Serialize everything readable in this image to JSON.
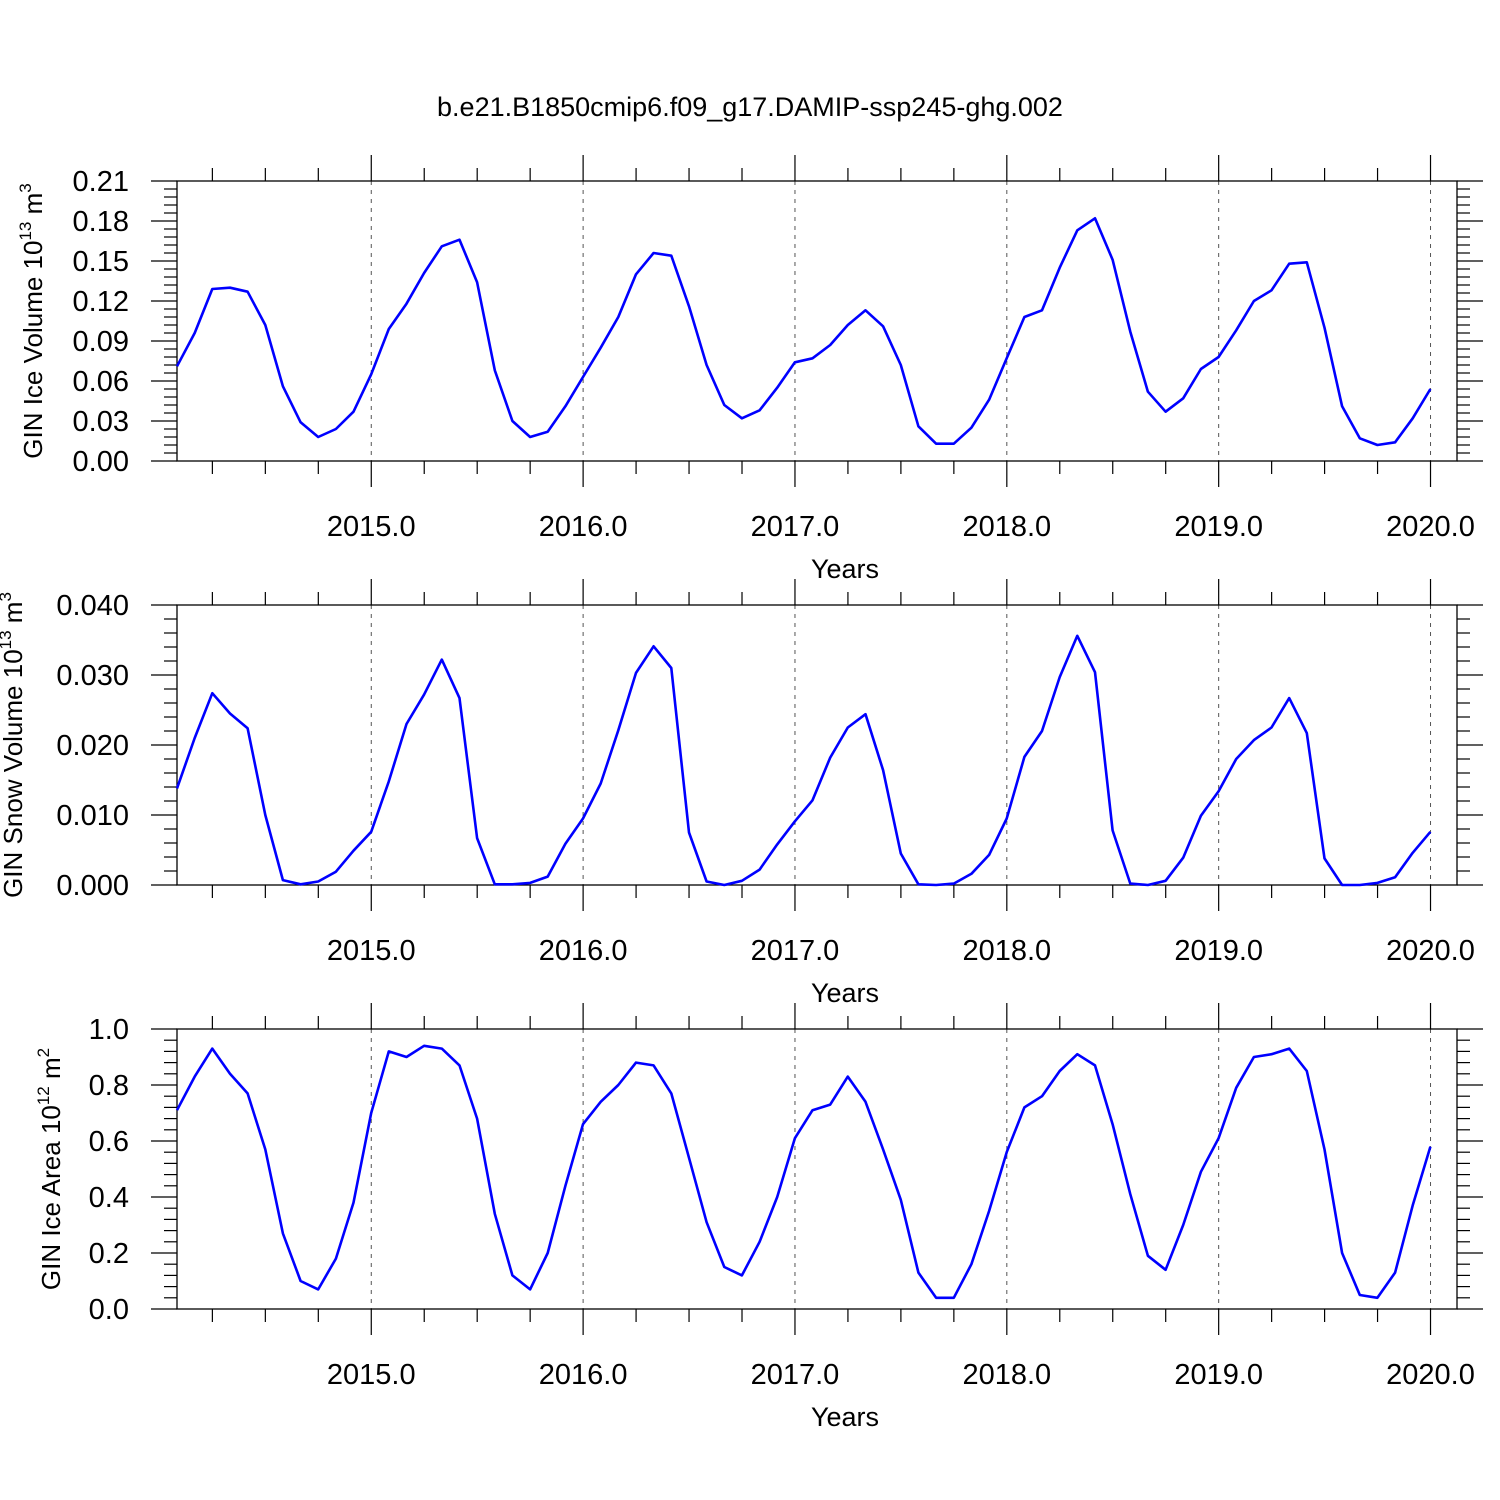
{
  "figure": {
    "title": "b.e21.B1850cmip6.f09_g17.DAMIP-ssp245-ghg.002"
  },
  "colors": {
    "series": "#0000ff",
    "axes": "#000000",
    "grid": "#555555"
  },
  "chart_data": [
    {
      "type": "line",
      "xlabel": "Years",
      "ylabel_main": "GIN Ice Volume 10",
      "ylabel_exp": "13",
      "ylabel_unit": " m",
      "ylabel_unit_exp": "3",
      "xlim": [
        2014.083,
        2020.125
      ],
      "ylim": [
        0.0,
        0.21
      ],
      "x_tick_values": [
        2015,
        2016,
        2017,
        2018,
        2019,
        2020
      ],
      "x_tick_labels": [
        "2015.0",
        "2016.0",
        "2017.0",
        "2018.0",
        "2019.0",
        "2020.0"
      ],
      "y_tick_values": [
        0.0,
        0.03,
        0.06,
        0.09,
        0.12,
        0.15,
        0.18,
        0.21
      ],
      "y_tick_labels": [
        "0.00",
        "0.03",
        "0.06",
        "0.09",
        "0.12",
        "0.15",
        "0.18",
        "0.21"
      ],
      "grid_x": "dashed vertical at each year",
      "x_start": 2014.083,
      "x_step": 0.08333,
      "values": [
        0.071,
        0.096,
        0.129,
        0.13,
        0.127,
        0.102,
        0.056,
        0.029,
        0.018,
        0.024,
        0.037,
        0.065,
        0.099,
        0.118,
        0.141,
        0.161,
        0.166,
        0.134,
        0.068,
        0.03,
        0.018,
        0.022,
        0.041,
        0.063,
        0.085,
        0.108,
        0.14,
        0.156,
        0.154,
        0.116,
        0.072,
        0.042,
        0.032,
        0.038,
        0.055,
        0.074,
        0.077,
        0.087,
        0.102,
        0.113,
        0.101,
        0.072,
        0.026,
        0.013,
        0.013,
        0.025,
        0.046,
        0.077,
        0.108,
        0.113,
        0.145,
        0.173,
        0.182,
        0.151,
        0.097,
        0.052,
        0.037,
        0.047,
        0.069,
        0.078,
        0.098,
        0.12,
        0.128,
        0.148,
        0.149,
        0.1,
        0.041,
        0.017,
        0.012,
        0.014,
        0.032,
        0.054
      ]
    },
    {
      "type": "line",
      "xlabel": "Years",
      "ylabel_main": "GIN Snow Volume 10",
      "ylabel_exp": "13",
      "ylabel_unit": " m",
      "ylabel_unit_exp": "3",
      "xlim": [
        2014.083,
        2020.125
      ],
      "ylim": [
        0.0,
        0.04
      ],
      "x_tick_values": [
        2015,
        2016,
        2017,
        2018,
        2019,
        2020
      ],
      "x_tick_labels": [
        "2015.0",
        "2016.0",
        "2017.0",
        "2018.0",
        "2019.0",
        "2020.0"
      ],
      "y_tick_values": [
        0.0,
        0.01,
        0.02,
        0.03,
        0.04
      ],
      "y_tick_labels": [
        "0.000",
        "0.010",
        "0.020",
        "0.030",
        "0.040"
      ],
      "grid_x": "dashed vertical at each year",
      "x_start": 2014.083,
      "x_step": 0.08333,
      "values": [
        0.0138,
        0.021,
        0.0274,
        0.0245,
        0.0224,
        0.01,
        0.0007,
        0.0001,
        0.0005,
        0.0019,
        0.0049,
        0.0076,
        0.0148,
        0.023,
        0.0272,
        0.0322,
        0.0267,
        0.0067,
        0.0001,
        0.0001,
        0.0003,
        0.0012,
        0.0059,
        0.0095,
        0.0145,
        0.0221,
        0.0303,
        0.0341,
        0.031,
        0.0075,
        0.0005,
        0.0,
        0.0006,
        0.0022,
        0.0058,
        0.0091,
        0.0121,
        0.0182,
        0.0225,
        0.0244,
        0.0164,
        0.0045,
        0.0001,
        0.0,
        0.0002,
        0.0016,
        0.0043,
        0.0095,
        0.0183,
        0.022,
        0.0297,
        0.0356,
        0.0304,
        0.0078,
        0.0002,
        0.0,
        0.0006,
        0.0039,
        0.0099,
        0.0134,
        0.018,
        0.0207,
        0.0225,
        0.0267,
        0.0217,
        0.0038,
        0.0,
        0.0,
        0.0003,
        0.0011,
        0.0046,
        0.0076
      ]
    },
    {
      "type": "line",
      "xlabel": "Years",
      "ylabel_main": "GIN Ice Area 10",
      "ylabel_exp": "12",
      "ylabel_unit": " m",
      "ylabel_unit_exp": "2",
      "xlim": [
        2014.083,
        2020.125
      ],
      "ylim": [
        0.0,
        1.0
      ],
      "x_tick_values": [
        2015,
        2016,
        2017,
        2018,
        2019,
        2020
      ],
      "x_tick_labels": [
        "2015.0",
        "2016.0",
        "2017.0",
        "2018.0",
        "2019.0",
        "2020.0"
      ],
      "y_tick_values": [
        0.0,
        0.2,
        0.4,
        0.6,
        0.8,
        1.0
      ],
      "y_tick_labels": [
        "0.0",
        "0.2",
        "0.4",
        "0.6",
        "0.8",
        "1.0"
      ],
      "grid_x": "dashed vertical at each year",
      "x_start": 2014.083,
      "x_step": 0.08333,
      "values": [
        0.71,
        0.83,
        0.93,
        0.84,
        0.77,
        0.57,
        0.27,
        0.1,
        0.07,
        0.18,
        0.38,
        0.7,
        0.92,
        0.9,
        0.94,
        0.93,
        0.87,
        0.68,
        0.34,
        0.12,
        0.07,
        0.2,
        0.44,
        0.66,
        0.74,
        0.8,
        0.88,
        0.87,
        0.77,
        0.54,
        0.31,
        0.15,
        0.12,
        0.24,
        0.4,
        0.61,
        0.71,
        0.73,
        0.83,
        0.74,
        0.57,
        0.39,
        0.13,
        0.04,
        0.04,
        0.16,
        0.35,
        0.56,
        0.72,
        0.76,
        0.85,
        0.91,
        0.87,
        0.66,
        0.41,
        0.19,
        0.14,
        0.3,
        0.49,
        0.61,
        0.79,
        0.9,
        0.91,
        0.93,
        0.85,
        0.57,
        0.2,
        0.05,
        0.04,
        0.13,
        0.37,
        0.58
      ]
    }
  ]
}
